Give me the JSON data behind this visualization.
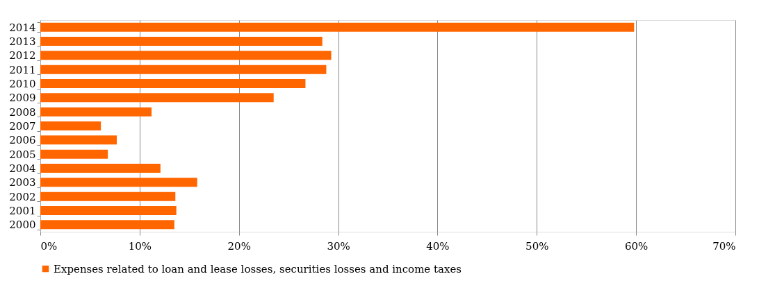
{
  "chart_data": {
    "type": "bar",
    "orientation": "horizontal",
    "categories": [
      "2014",
      "2013",
      "2012",
      "2011",
      "2010",
      "2009",
      "2008",
      "2007",
      "2006",
      "2005",
      "2004",
      "2003",
      "2002",
      "2001",
      "2000"
    ],
    "series": [
      {
        "name": "Expenses related to loan and lease losses, securities losses and income taxes",
        "color": "#ff6600",
        "values": [
          59.8,
          28.4,
          29.3,
          28.8,
          26.7,
          23.5,
          11.2,
          6.1,
          7.7,
          6.8,
          12.1,
          15.8,
          13.6,
          13.7,
          13.5
        ]
      }
    ],
    "xlim": [
      0,
      70
    ],
    "xticks": [
      {
        "value": 0,
        "label": "0%"
      },
      {
        "value": 10,
        "label": "10%"
      },
      {
        "value": 20,
        "label": "20%"
      },
      {
        "value": 30,
        "label": "30%"
      },
      {
        "value": 40,
        "label": "40%"
      },
      {
        "value": 50,
        "label": "50%"
      },
      {
        "value": 60,
        "label": "60%"
      },
      {
        "value": 70,
        "label": "70%"
      }
    ],
    "grid": "x",
    "legend": "bottom"
  }
}
